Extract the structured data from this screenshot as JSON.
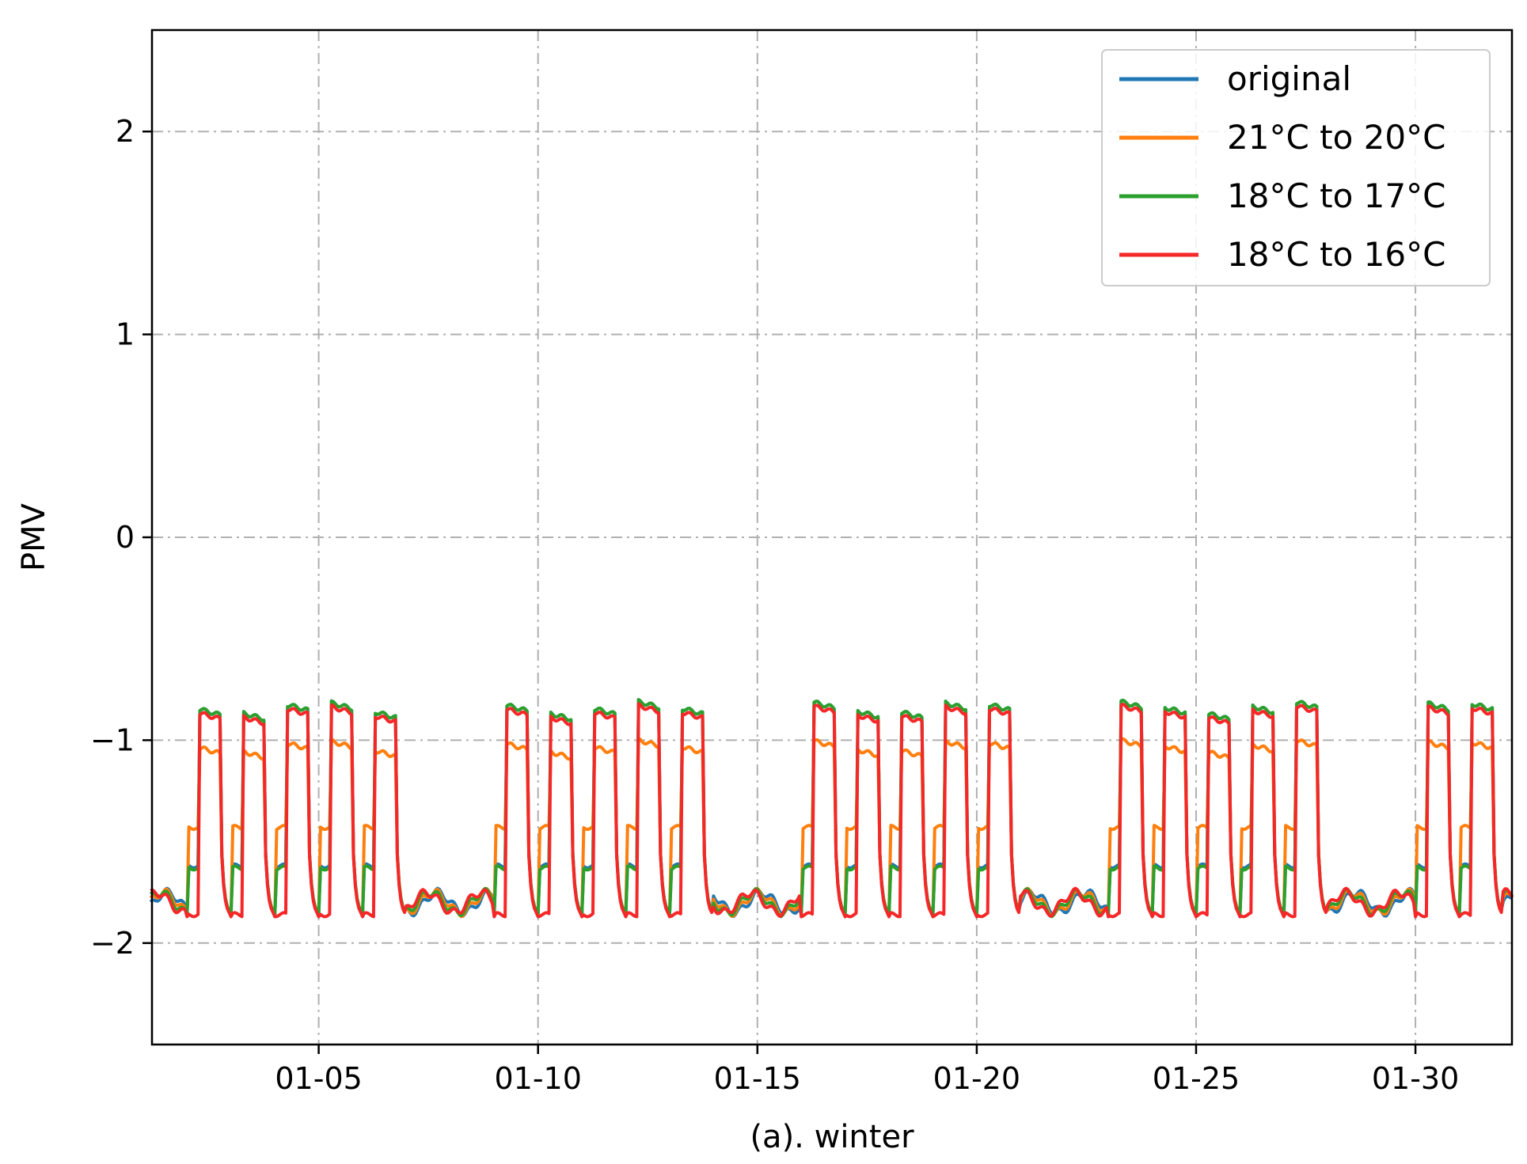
{
  "chart_data": {
    "type": "line",
    "xlabel": "(a). winter",
    "ylabel": "PMV",
    "xlim": [
      1.2,
      32.2
    ],
    "ylim": [
      -2.5,
      2.5
    ],
    "x_ticks": [
      {
        "value": 5,
        "label": "01-05"
      },
      {
        "value": 10,
        "label": "01-10"
      },
      {
        "value": 15,
        "label": "01-15"
      },
      {
        "value": 20,
        "label": "01-20"
      },
      {
        "value": 25,
        "label": "01-25"
      },
      {
        "value": 30,
        "label": "01-30"
      }
    ],
    "y_ticks": [
      {
        "value": -2,
        "label": "−2"
      },
      {
        "value": -1,
        "label": "−1"
      },
      {
        "value": 0,
        "label": "0"
      },
      {
        "value": 1,
        "label": "1"
      },
      {
        "value": 2,
        "label": "2"
      }
    ],
    "grid": true,
    "legend_position": "top-right",
    "profile": {
      "baseline": -1.8,
      "occupied_days": [
        2,
        3,
        4,
        5,
        6,
        9,
        10,
        11,
        12,
        13,
        16,
        17,
        18,
        19,
        20,
        23,
        24,
        25,
        26,
        27,
        30,
        31
      ],
      "occupied_start_hour": 7,
      "occupied_end_hour": 19,
      "preheat_start_hour": 1
    },
    "series": [
      {
        "name": "original",
        "color": "#1f77b4",
        "occupied_level": -0.84,
        "preheat_level": -1.62,
        "unoccupied_low": -1.86
      },
      {
        "name": "21°C to 20°C",
        "color": "#ff7f0e",
        "occupied_level": -1.03,
        "preheat_level": -1.43,
        "unoccupied_low": -1.86
      },
      {
        "name": "18°C to 17°C",
        "color": "#2ca02c",
        "occupied_level": -0.84,
        "preheat_level": -1.63,
        "unoccupied_low": -1.86
      },
      {
        "name": "18°C to 16°C",
        "color": "#f62728",
        "occupied_level": -0.86,
        "preheat_level": -1.86,
        "unoccupied_low": -1.87
      }
    ]
  }
}
